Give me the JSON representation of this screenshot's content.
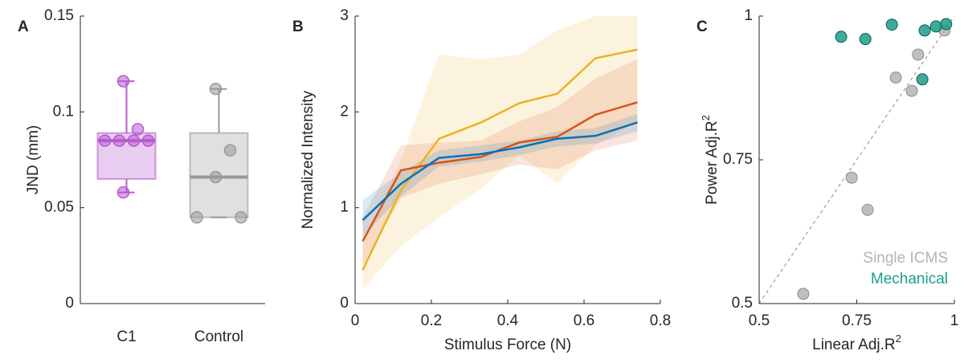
{
  "chart_data": [
    {
      "type": "box",
      "label": "A",
      "ylabel": "JND (mm)",
      "categories": [
        "C1",
        "Control"
      ],
      "ylim": [
        0,
        0.15
      ],
      "yticks": [
        0,
        0.05,
        0.1,
        0.15
      ],
      "boxes": [
        {
          "color": "#b75bcf",
          "q1": 0.065,
          "median": 0.085,
          "q3": 0.089,
          "whisker_low": 0.058,
          "whisker_high": 0.116,
          "points": [
            0.116,
            0.085,
            0.085,
            0.085,
            0.085,
            0.091,
            0.058
          ]
        },
        {
          "color": "#999999",
          "q1": 0.045,
          "median": 0.066,
          "q3": 0.089,
          "whisker_low": 0.045,
          "whisker_high": 0.112,
          "points": [
            0.112,
            0.08,
            0.066,
            0.045,
            0.045
          ]
        }
      ]
    },
    {
      "type": "line",
      "label": "B",
      "xlabel": "Stimulus Force (N)",
      "ylabel": "Normalized Intensity",
      "x": [
        0.02,
        0.12,
        0.22,
        0.33,
        0.43,
        0.53,
        0.63,
        0.74
      ],
      "xlim": [
        0,
        0.8
      ],
      "xticks": [
        0,
        0.2,
        0.4,
        0.6,
        0.8
      ],
      "ylim": [
        0,
        3
      ],
      "yticks": [
        0,
        1,
        2,
        3
      ],
      "series": [
        {
          "color": "#edb120",
          "values": [
            0.35,
            1.18,
            1.72,
            1.89,
            2.09,
            2.19,
            2.56,
            2.65
          ],
          "upper": [
            0.6,
            1.5,
            2.6,
            2.55,
            2.6,
            2.85,
            3.0,
            3.0
          ],
          "lower": [
            0.15,
            0.6,
            0.9,
            1.2,
            1.55,
            1.25,
            1.65,
            1.9
          ]
        },
        {
          "color": "#d95319",
          "values": [
            0.65,
            1.39,
            1.47,
            1.53,
            1.68,
            1.74,
            1.97,
            2.1
          ],
          "upper": [
            0.9,
            1.65,
            1.68,
            1.7,
            1.9,
            2.05,
            2.35,
            2.55
          ],
          "lower": [
            0.4,
            1.1,
            1.25,
            1.35,
            1.45,
            1.4,
            1.6,
            1.7
          ]
        },
        {
          "color": "#0072bd",
          "values": [
            0.87,
            1.25,
            1.52,
            1.56,
            1.63,
            1.72,
            1.75,
            1.89
          ],
          "upper": [
            1.08,
            1.37,
            1.6,
            1.65,
            1.7,
            1.8,
            1.83,
            1.98
          ],
          "lower": [
            0.7,
            1.12,
            1.43,
            1.48,
            1.55,
            1.64,
            1.67,
            1.8
          ]
        }
      ]
    },
    {
      "type": "scatter",
      "label": "C",
      "xlabel": {
        "text": "Linear Adj.R",
        "sup": "2"
      },
      "ylabel": {
        "text": "Power Adj.R",
        "sup": "2"
      },
      "xlim": [
        0.5,
        1
      ],
      "xticks": [
        0.5,
        0.75,
        1
      ],
      "ylim": [
        0.5,
        1
      ],
      "yticks": [
        0.5,
        0.75,
        1
      ],
      "series": [
        {
          "name": "Single ICMS",
          "color": "#b4b4b4",
          "edge": "#8c8c8c",
          "x": [
            0.613,
            0.737,
            0.778,
            0.85,
            0.891,
            0.907,
            0.975
          ],
          "y": [
            0.517,
            0.719,
            0.663,
            0.893,
            0.87,
            0.933,
            0.975
          ]
        },
        {
          "name": "Mechanical",
          "color": "#1a9c8a",
          "edge": "#0d5e53",
          "x": [
            0.71,
            0.772,
            0.84,
            0.924,
            0.953,
            0.979,
            0.918
          ],
          "y": [
            0.964,
            0.96,
            0.985,
            0.975,
            0.982,
            0.986,
            0.89
          ]
        }
      ]
    }
  ]
}
